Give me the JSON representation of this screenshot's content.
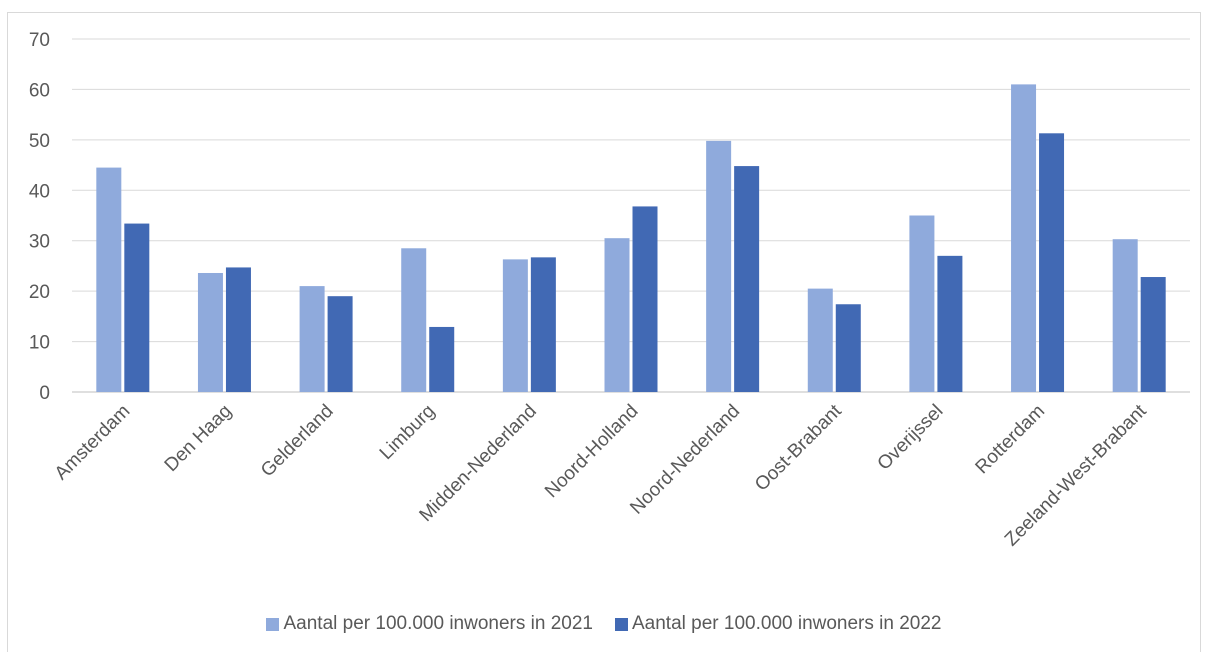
{
  "chart_data": {
    "type": "bar",
    "title": "",
    "xlabel": "",
    "ylabel": "",
    "ylim": [
      0,
      70
    ],
    "yticks": [
      0,
      10,
      20,
      30,
      40,
      50,
      60,
      70
    ],
    "grid": true,
    "legend_position": "bottom",
    "categories": [
      "Amsterdam",
      "Den Haag",
      "Gelderland",
      "Limburg",
      "Midden-Nederland",
      "Noord-Holland",
      "Noord-Nederland",
      "Oost-Brabant",
      "Overijssel",
      "Rotterdam",
      "Zeeland-West-Brabant"
    ],
    "series": [
      {
        "name": "Aantal per 100.000 inwoners in 2021",
        "color": "#8faadc",
        "values": [
          44.5,
          23.6,
          21.0,
          28.5,
          26.3,
          30.5,
          49.8,
          20.5,
          35.0,
          61.0,
          30.3
        ]
      },
      {
        "name": "Aantal per 100.000 inwoners in 2022",
        "color": "#4169b4",
        "values": [
          33.4,
          24.7,
          19.0,
          12.9,
          26.7,
          36.8,
          44.8,
          17.4,
          27.0,
          51.3,
          22.8
        ]
      }
    ]
  }
}
